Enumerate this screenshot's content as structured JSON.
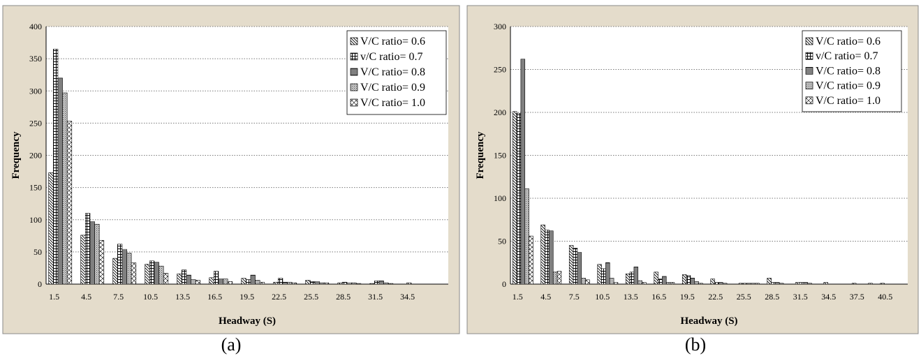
{
  "colors": {
    "panel_bg": "#e4dccb",
    "plot_bg": "#ffffff",
    "border": "#8a8a8a",
    "bar_stroke": "#000000",
    "grid": "#7a7a7a"
  },
  "chart_data": [
    {
      "type": "bar",
      "caption": "(a)",
      "xlabel": "Headway (S)",
      "ylabel": "Frequency",
      "ylim": [
        0,
        400
      ],
      "yticks": [
        0,
        50,
        100,
        150,
        200,
        250,
        300,
        350,
        400
      ],
      "grid": "horizontal dotted",
      "legend_position": "top-right",
      "categories": [
        "1.5",
        "4.5",
        "7.5",
        "10.5",
        "13.5",
        "16.5",
        "19.5",
        "22.5",
        "25.5",
        "28.5",
        "31.5",
        "34.5"
      ],
      "series": [
        {
          "name": "V/C ratio= 0.6",
          "pattern": "diag-down",
          "values": [
            173,
            76,
            40,
            31,
            16,
            10,
            9,
            3,
            6,
            2,
            1,
            0
          ]
        },
        {
          "name": "v/C ratio= 0.7",
          "pattern": "grid",
          "values": [
            365,
            110,
            62,
            36,
            22,
            20,
            7,
            9,
            4,
            3,
            5,
            2
          ]
        },
        {
          "name": "V/C ratio= 0.8",
          "pattern": "hlines",
          "values": [
            320,
            97,
            54,
            34,
            14,
            8,
            14,
            3,
            4,
            2,
            5,
            0
          ]
        },
        {
          "name": "V/C ratio= 0.9",
          "pattern": "dots",
          "values": [
            297,
            93,
            48,
            28,
            7,
            8,
            6,
            3,
            2,
            2,
            2,
            0
          ]
        },
        {
          "name": "V/C ratio= 1.0",
          "pattern": "diag-cross",
          "values": [
            253,
            68,
            33,
            17,
            6,
            4,
            3,
            2,
            2,
            1,
            1,
            0
          ]
        }
      ]
    },
    {
      "type": "bar",
      "caption": "(b)",
      "xlabel": "Headway (S)",
      "ylabel": "Frequency",
      "ylim": [
        0,
        300
      ],
      "yticks": [
        0,
        50,
        100,
        150,
        200,
        250,
        300
      ],
      "grid": "horizontal dotted",
      "legend_position": "top-right",
      "categories": [
        "1.5",
        "4.5",
        "7.5",
        "10.5",
        "13.5",
        "16.5",
        "19.5",
        "22.5",
        "25.5",
        "28.5",
        "31.5",
        "34.5",
        "37.5",
        "40.5"
      ],
      "series": [
        {
          "name": "V/C ratio= 0.6",
          "pattern": "diag-down",
          "values": [
            201,
            69,
            45,
            23,
            12,
            14,
            11,
            6,
            1,
            7,
            2,
            2,
            1,
            1
          ]
        },
        {
          "name": "v/C ratio= 0.7",
          "pattern": "grid",
          "values": [
            199,
            63,
            42,
            18,
            14,
            6,
            10,
            2,
            1,
            2,
            2,
            0,
            0,
            0
          ]
        },
        {
          "name": "V/C ratio= 0.8",
          "pattern": "hlines",
          "values": [
            262,
            62,
            37,
            25,
            20,
            9,
            7,
            2,
            1,
            2,
            2,
            0,
            0,
            0
          ]
        },
        {
          "name": "V/C ratio= 0.9",
          "pattern": "dots",
          "values": [
            111,
            14,
            7,
            7,
            4,
            2,
            3,
            1,
            1,
            1,
            1,
            0,
            0,
            0
          ]
        },
        {
          "name": "V/C ratio= 1.0",
          "pattern": "diag-cross",
          "values": [
            56,
            15,
            5,
            2,
            2,
            2,
            1,
            0,
            1,
            0,
            0,
            0,
            1,
            0
          ]
        }
      ]
    }
  ]
}
